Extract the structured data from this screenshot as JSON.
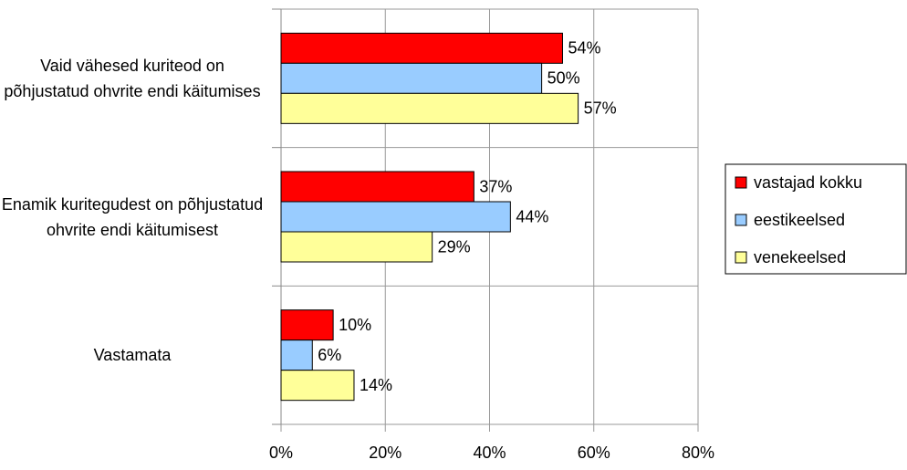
{
  "chart_data": {
    "type": "barh",
    "categories": [
      "Vaid vähesed kuriteod on põhjustatud ohvrite endi käitumises",
      "Enamik kuritegudest on põhjustatud ohvrite endi käitumisest",
      "Vastamata"
    ],
    "series": [
      {
        "name": "vastajad kokku",
        "color": "#ff0000",
        "values": [
          54,
          37,
          10
        ],
        "value_labels": [
          "54%",
          "37%",
          "10%"
        ]
      },
      {
        "name": "eestikeelsed",
        "color": "#99ccff",
        "values": [
          50,
          44,
          6
        ],
        "value_labels": [
          "50%",
          "44%",
          "6%"
        ]
      },
      {
        "name": "venekeelsed",
        "color": "#ffff99",
        "values": [
          57,
          29,
          14
        ],
        "value_labels": [
          "57%",
          "29%",
          "14%"
        ]
      }
    ],
    "xlim": [
      0,
      80
    ],
    "xticks": [
      {
        "value": 0,
        "label": "0%"
      },
      {
        "value": 20,
        "label": "20%"
      },
      {
        "value": 40,
        "label": "40%"
      },
      {
        "value": 60,
        "label": "60%"
      },
      {
        "value": 80,
        "label": "80%"
      }
    ],
    "grid": true,
    "legend": "right"
  }
}
